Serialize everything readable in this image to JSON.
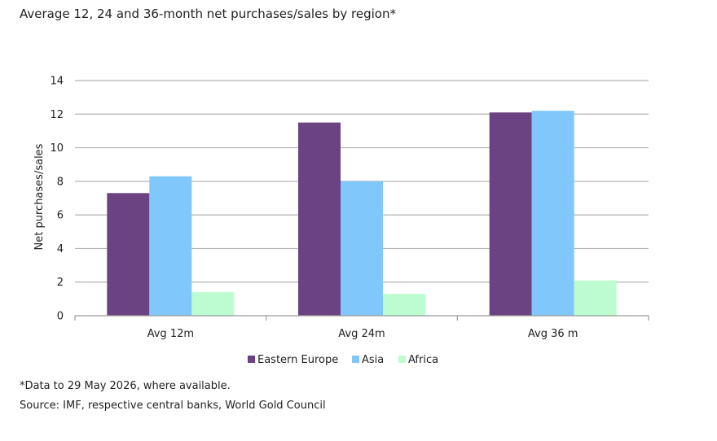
{
  "title": "Average 12, 24 and 36-month net purchases/sales by region*",
  "footnotes": {
    "note": "*Data to 29 May 2026, where available.",
    "source": "Source: IMF, respective central banks, World Gold Council"
  },
  "chart_data": {
    "type": "bar",
    "categories": [
      "Avg 12m",
      "Avg 24m",
      "Avg 36 m"
    ],
    "series": [
      {
        "name": "Eastern Europe",
        "color": "#6b4282",
        "values": [
          7.3,
          11.5,
          12.1
        ]
      },
      {
        "name": "Asia",
        "color": "#80c8fb",
        "values": [
          8.3,
          8.0,
          12.2
        ]
      },
      {
        "name": "Africa",
        "color": "#bdfcd0",
        "values": [
          1.4,
          1.3,
          2.1
        ]
      }
    ],
    "ylabel": "Net purchases/sales",
    "xlabel": "",
    "ylim": [
      0,
      14
    ],
    "yticks": [
      0,
      2,
      4,
      6,
      8,
      10,
      12,
      14
    ],
    "grid": true,
    "legend": "bottom"
  }
}
